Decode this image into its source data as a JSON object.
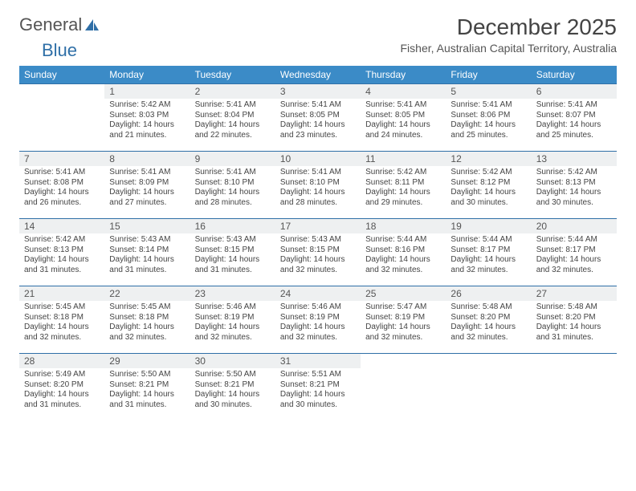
{
  "logo": {
    "word1": "General",
    "word2": "Blue"
  },
  "title": "December 2025",
  "location": "Fisher, Australian Capital Territory, Australia",
  "colors": {
    "header_bg": "#3b8bc7",
    "header_text": "#ffffff",
    "rule": "#2f6fa7",
    "daynum_bg": "#eef0f1",
    "logo_gray": "#555555",
    "logo_blue": "#2f6fa7"
  },
  "weekdays": [
    "Sunday",
    "Monday",
    "Tuesday",
    "Wednesday",
    "Thursday",
    "Friday",
    "Saturday"
  ],
  "days": [
    {
      "n": "",
      "blank": true
    },
    {
      "n": "1",
      "sr": "5:42 AM",
      "ss": "8:03 PM",
      "dl": "14 hours and 21 minutes."
    },
    {
      "n": "2",
      "sr": "5:41 AM",
      "ss": "8:04 PM",
      "dl": "14 hours and 22 minutes."
    },
    {
      "n": "3",
      "sr": "5:41 AM",
      "ss": "8:05 PM",
      "dl": "14 hours and 23 minutes."
    },
    {
      "n": "4",
      "sr": "5:41 AM",
      "ss": "8:05 PM",
      "dl": "14 hours and 24 minutes."
    },
    {
      "n": "5",
      "sr": "5:41 AM",
      "ss": "8:06 PM",
      "dl": "14 hours and 25 minutes."
    },
    {
      "n": "6",
      "sr": "5:41 AM",
      "ss": "8:07 PM",
      "dl": "14 hours and 25 minutes."
    },
    {
      "n": "7",
      "sr": "5:41 AM",
      "ss": "8:08 PM",
      "dl": "14 hours and 26 minutes."
    },
    {
      "n": "8",
      "sr": "5:41 AM",
      "ss": "8:09 PM",
      "dl": "14 hours and 27 minutes."
    },
    {
      "n": "9",
      "sr": "5:41 AM",
      "ss": "8:10 PM",
      "dl": "14 hours and 28 minutes."
    },
    {
      "n": "10",
      "sr": "5:41 AM",
      "ss": "8:10 PM",
      "dl": "14 hours and 28 minutes."
    },
    {
      "n": "11",
      "sr": "5:42 AM",
      "ss": "8:11 PM",
      "dl": "14 hours and 29 minutes."
    },
    {
      "n": "12",
      "sr": "5:42 AM",
      "ss": "8:12 PM",
      "dl": "14 hours and 30 minutes."
    },
    {
      "n": "13",
      "sr": "5:42 AM",
      "ss": "8:13 PM",
      "dl": "14 hours and 30 minutes."
    },
    {
      "n": "14",
      "sr": "5:42 AM",
      "ss": "8:13 PM",
      "dl": "14 hours and 31 minutes."
    },
    {
      "n": "15",
      "sr": "5:43 AM",
      "ss": "8:14 PM",
      "dl": "14 hours and 31 minutes."
    },
    {
      "n": "16",
      "sr": "5:43 AM",
      "ss": "8:15 PM",
      "dl": "14 hours and 31 minutes."
    },
    {
      "n": "17",
      "sr": "5:43 AM",
      "ss": "8:15 PM",
      "dl": "14 hours and 32 minutes."
    },
    {
      "n": "18",
      "sr": "5:44 AM",
      "ss": "8:16 PM",
      "dl": "14 hours and 32 minutes."
    },
    {
      "n": "19",
      "sr": "5:44 AM",
      "ss": "8:17 PM",
      "dl": "14 hours and 32 minutes."
    },
    {
      "n": "20",
      "sr": "5:44 AM",
      "ss": "8:17 PM",
      "dl": "14 hours and 32 minutes."
    },
    {
      "n": "21",
      "sr": "5:45 AM",
      "ss": "8:18 PM",
      "dl": "14 hours and 32 minutes."
    },
    {
      "n": "22",
      "sr": "5:45 AM",
      "ss": "8:18 PM",
      "dl": "14 hours and 32 minutes."
    },
    {
      "n": "23",
      "sr": "5:46 AM",
      "ss": "8:19 PM",
      "dl": "14 hours and 32 minutes."
    },
    {
      "n": "24",
      "sr": "5:46 AM",
      "ss": "8:19 PM",
      "dl": "14 hours and 32 minutes."
    },
    {
      "n": "25",
      "sr": "5:47 AM",
      "ss": "8:19 PM",
      "dl": "14 hours and 32 minutes."
    },
    {
      "n": "26",
      "sr": "5:48 AM",
      "ss": "8:20 PM",
      "dl": "14 hours and 32 minutes."
    },
    {
      "n": "27",
      "sr": "5:48 AM",
      "ss": "8:20 PM",
      "dl": "14 hours and 31 minutes."
    },
    {
      "n": "28",
      "sr": "5:49 AM",
      "ss": "8:20 PM",
      "dl": "14 hours and 31 minutes."
    },
    {
      "n": "29",
      "sr": "5:50 AM",
      "ss": "8:21 PM",
      "dl": "14 hours and 31 minutes."
    },
    {
      "n": "30",
      "sr": "5:50 AM",
      "ss": "8:21 PM",
      "dl": "14 hours and 30 minutes."
    },
    {
      "n": "31",
      "sr": "5:51 AM",
      "ss": "8:21 PM",
      "dl": "14 hours and 30 minutes."
    },
    {
      "n": "",
      "blank": true
    },
    {
      "n": "",
      "blank": true
    },
    {
      "n": "",
      "blank": true
    }
  ],
  "labels": {
    "sunrise": "Sunrise:",
    "sunset": "Sunset:",
    "daylight": "Daylight:"
  }
}
